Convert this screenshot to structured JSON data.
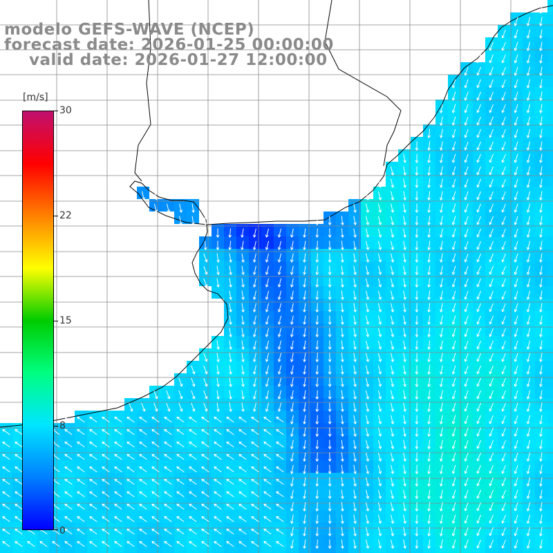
{
  "title": {
    "model": "modelo GEFS-WAVE (NCEP)",
    "forecast": "forecast date: 2026-01-25 00:00:00",
    "valid": "valid date: 2026-01-27 12:00:00"
  },
  "colorbar": {
    "unit": "[m/s]",
    "ticks": [
      "30",
      "22",
      "15",
      "8",
      "0"
    ],
    "tick_values": [
      30,
      22,
      15,
      8,
      0
    ],
    "min": 0,
    "max": 30,
    "colors": [
      "#0000ff",
      "#0080ff",
      "#00e5ff",
      "#00ff80",
      "#00cc00",
      "#ffff00",
      "#ff8000",
      "#ff0000",
      "#c01070"
    ]
  },
  "map": {
    "land_color": "#ffffff",
    "grid_color": "#888888",
    "coast_color": "#000000",
    "arrow_color": "#ffffff",
    "wind_direction": "predominantly southward (from N/NE), southwest-ward in south-west sector"
  }
}
